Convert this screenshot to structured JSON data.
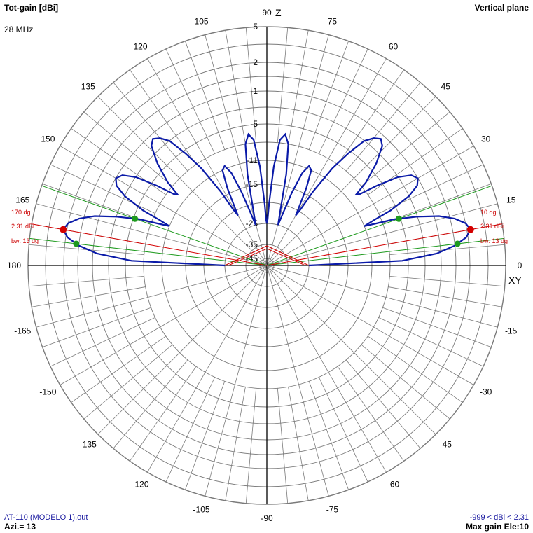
{
  "header": {
    "left_title": "Tot-gain [dBi]",
    "frequency": "28 MHz",
    "right_title": "Vertical plane"
  },
  "footer": {
    "file_name": "AT-110 (MODELO 1).out",
    "azimuth": "Azi.= 13",
    "range": "-999 < dBi < 2.31",
    "max_gain": "Max gain Ele:10"
  },
  "axis_labels": {
    "zenith": "Z",
    "horizon": "XY"
  },
  "colors": {
    "pattern": "#0a1aa8",
    "grid": "#7a7a7a",
    "axis": "#000000",
    "beamwidth_line": "#1e9a1e",
    "max_line": "#d40000"
  },
  "chart_data": {
    "type": "polar",
    "plane": "vertical",
    "angle_unit": "deg",
    "angle_ticks": [
      0,
      15,
      30,
      45,
      60,
      75,
      90,
      105,
      120,
      135,
      150,
      165,
      180,
      -165,
      -150,
      -135,
      -120,
      -105,
      -90,
      -75,
      -60,
      -45,
      -30,
      -15
    ],
    "radial_ticks_dbi": [
      5,
      2,
      -1,
      -5,
      -11,
      -15,
      -25,
      -35,
      -45
    ],
    "max_gain_dbi": 2.31,
    "max_gain_elevations": [
      10,
      170
    ],
    "beamwidth_deg": 13,
    "beamwidth_edges_deg": [
      6.5,
      19.5,
      160.5,
      173.5
    ],
    "series": [
      {
        "points": [
          {
            "elev": 0,
            "gain": -25
          },
          {
            "elev": 2,
            "gain": -6
          },
          {
            "elev": 4,
            "gain": -1.5
          },
          {
            "elev": 6,
            "gain": 0.5
          },
          {
            "elev": 8,
            "gain": 1.8
          },
          {
            "elev": 10,
            "gain": 2.31
          },
          {
            "elev": 12,
            "gain": 2.0
          },
          {
            "elev": 14,
            "gain": 1.0
          },
          {
            "elev": 16,
            "gain": -0.5
          },
          {
            "elev": 18,
            "gain": -3
          },
          {
            "elev": 20,
            "gain": -6
          },
          {
            "elev": 21,
            "gain": -9
          },
          {
            "elev": 22,
            "gain": -11
          },
          {
            "elev": 23,
            "gain": -9
          },
          {
            "elev": 24,
            "gain": -6
          },
          {
            "elev": 26,
            "gain": -3
          },
          {
            "elev": 28,
            "gain": -1.5
          },
          {
            "elev": 30,
            "gain": -1
          },
          {
            "elev": 32,
            "gain": -1.5
          },
          {
            "elev": 34,
            "gain": -3
          },
          {
            "elev": 36,
            "gain": -6
          },
          {
            "elev": 37.5,
            "gain": -9
          },
          {
            "elev": 38.5,
            "gain": -9.5
          },
          {
            "elev": 40,
            "gain": -7
          },
          {
            "elev": 43,
            "gain": -4
          },
          {
            "elev": 46,
            "gain": -2
          },
          {
            "elev": 48,
            "gain": -1.5
          },
          {
            "elev": 50,
            "gain": -2
          },
          {
            "elev": 52,
            "gain": -3
          },
          {
            "elev": 54,
            "gain": -5.5
          },
          {
            "elev": 56,
            "gain": -9
          },
          {
            "elev": 58,
            "gain": -14
          },
          {
            "elev": 59,
            "gain": -19
          },
          {
            "elev": 60,
            "gain": -21
          },
          {
            "elev": 61,
            "gain": -19
          },
          {
            "elev": 63,
            "gain": -14
          },
          {
            "elev": 65,
            "gain": -11
          },
          {
            "elev": 67,
            "gain": -10.5
          },
          {
            "elev": 69,
            "gain": -12
          },
          {
            "elev": 71,
            "gain": -16
          },
          {
            "elev": 73,
            "gain": -22
          },
          {
            "elev": 74.5,
            "gain": -25
          },
          {
            "elev": 76,
            "gain": -22
          },
          {
            "elev": 78,
            "gain": -13
          },
          {
            "elev": 80,
            "gain": -8
          },
          {
            "elev": 82,
            "gain": -6.5
          },
          {
            "elev": 84,
            "gain": -7.5
          },
          {
            "elev": 86,
            "gain": -12
          },
          {
            "elev": 88,
            "gain": -20
          },
          {
            "elev": 89,
            "gain": -24
          },
          {
            "elev": 90,
            "gain": -25
          }
        ]
      }
    ]
  }
}
